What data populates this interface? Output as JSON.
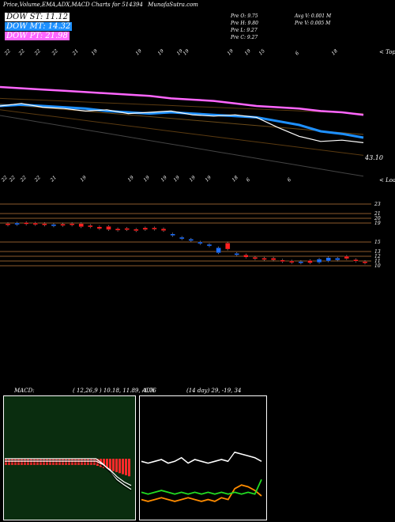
{
  "header": {
    "title": "Price,Volume,EMA,ADX,MACD Charts for 514394",
    "site": "MunafaSutra.com",
    "legend": [
      {
        "label": "DOW ST: 11.12",
        "color": "#ffffff"
      },
      {
        "label": "DOW MT: 14.32",
        "color": "#1e90ff"
      },
      {
        "label": "DOW PT: 21.98",
        "color": "#ff66ff"
      }
    ],
    "ohlc": [
      "Pre O: 9.75",
      "Pre H: 9.80",
      "Pre L: 9.27",
      "Pre C: 9.27"
    ],
    "vol": [
      "Avg V: 0.001 M",
      "Pre V: 0.005 M"
    ]
  },
  "ema_panel": {
    "top_dates": [
      "22",
      "22",
      "22",
      "22",
      "21",
      "19",
      "19",
      "19",
      "19",
      "19",
      "19",
      "19",
      "15",
      "6",
      "18"
    ],
    "bottom_dates": [
      "22",
      "22",
      "22",
      "22",
      "21",
      "19",
      "19",
      "19",
      "19",
      "19",
      "19",
      "19",
      "18",
      "6",
      "6"
    ],
    "last_label": "43.10",
    "top_note": "< Topo",
    "bottom_note": "< Loass"
  },
  "price_panel": {
    "levels": [
      23,
      21,
      20,
      19,
      15,
      13,
      12,
      11,
      10
    ]
  },
  "macd": {
    "label": "MACD:",
    "params": "( 12,26,9 ) 10.18, 11.89, -1.76"
  },
  "adx": {
    "label": "ADX",
    "params": "(14 day) 29, -19, 34"
  },
  "chart_data": [
    {
      "type": "line",
      "name": "ema",
      "series": [
        {
          "color": "#ff66ff",
          "values": [
            47.5,
            47.4,
            47.3,
            47.2,
            47.1,
            47.0,
            46.9,
            46.8,
            46.6,
            46.5,
            46.4,
            46.2,
            46.0,
            45.9,
            45.8,
            45.6,
            45.5,
            45.3
          ]
        },
        {
          "color": "#1e90ff",
          "values": [
            46.0,
            46.1,
            46.0,
            45.9,
            45.8,
            45.6,
            45.5,
            45.4,
            45.5,
            45.4,
            45.3,
            45.2,
            45.1,
            44.8,
            44.5,
            44.0,
            43.8,
            43.5
          ]
        },
        {
          "color": "#ffffff",
          "values": [
            46.0,
            46.2,
            45.9,
            45.8,
            45.6,
            45.7,
            45.4,
            45.5,
            45.6,
            45.3,
            45.2,
            45.3,
            45.1,
            44.3,
            43.6,
            43.2,
            43.3,
            43.1
          ]
        }
      ]
    },
    {
      "type": "candlestick",
      "name": "price",
      "ylim": [
        9,
        24
      ],
      "candles": [
        [
          18.9,
          18.8,
          "r"
        ],
        [
          18.9,
          19.0,
          "b"
        ],
        [
          18.8,
          19.1,
          "r"
        ],
        [
          18.7,
          19.0,
          "r"
        ],
        [
          18.8,
          18.9,
          "r"
        ],
        [
          18.5,
          18.7,
          "b"
        ],
        [
          18.6,
          18.8,
          "r"
        ],
        [
          18.9,
          18.7,
          "r"
        ],
        [
          18.2,
          18.9,
          "r"
        ],
        [
          18.3,
          18.5,
          "r"
        ],
        [
          17.8,
          18.2,
          "r"
        ],
        [
          17.6,
          18.3,
          "r"
        ],
        [
          17.5,
          17.8,
          "r"
        ],
        [
          17.6,
          17.9,
          "r"
        ],
        [
          17.4,
          17.7,
          "r"
        ],
        [
          17.6,
          18.0,
          "r"
        ],
        [
          17.7,
          18.0,
          "r"
        ],
        [
          17.4,
          17.8,
          "r"
        ],
        [
          16.5,
          16.7,
          "b"
        ],
        [
          15.8,
          16.0,
          "b"
        ],
        [
          15.4,
          15.6,
          "b"
        ],
        [
          14.8,
          15.0,
          "b"
        ],
        [
          14.3,
          14.5,
          "b"
        ],
        [
          12.7,
          13.8,
          "b"
        ],
        [
          13.5,
          14.8,
          "r"
        ],
        [
          12.4,
          12.6,
          "b"
        ],
        [
          11.8,
          12.3,
          "r"
        ],
        [
          11.6,
          11.8,
          "r"
        ],
        [
          11.4,
          11.6,
          "r"
        ],
        [
          11.2,
          11.6,
          "r"
        ],
        [
          10.9,
          11.2,
          "r"
        ],
        [
          10.8,
          11.0,
          "r"
        ],
        [
          10.7,
          10.9,
          "b"
        ],
        [
          10.6,
          11.1,
          "r"
        ],
        [
          10.7,
          11.4,
          "b"
        ],
        [
          11.0,
          11.7,
          "b"
        ],
        [
          11.2,
          11.6,
          "b"
        ],
        [
          11.5,
          12.0,
          "r"
        ],
        [
          11.0,
          11.3,
          "r"
        ],
        [
          10.6,
          10.9,
          "r"
        ]
      ]
    },
    {
      "type": "line",
      "name": "macd",
      "series": [
        {
          "name": "MACD",
          "values": [
            0,
            0,
            0,
            0,
            0,
            0,
            0,
            0,
            0,
            0,
            0,
            0,
            0,
            0,
            -0.3,
            -0.7,
            -1.2,
            -1.5,
            -1.76
          ]
        },
        {
          "name": "Signal",
          "values": [
            0,
            0,
            0,
            0,
            0,
            0,
            0,
            0,
            0,
            0,
            0,
            0,
            0,
            0,
            -0.2,
            -0.5,
            -0.9,
            -1.2,
            -1.4
          ]
        }
      ]
    },
    {
      "type": "line",
      "name": "adx",
      "series": [
        {
          "name": "ADX",
          "values": [
            29,
            28,
            29,
            30,
            28,
            29,
            31,
            28,
            30,
            29,
            28,
            29,
            30,
            29,
            34,
            33,
            32,
            31,
            29
          ]
        },
        {
          "name": "+DI",
          "values": [
            8,
            7,
            8,
            9,
            8,
            7,
            8,
            9,
            8,
            7,
            8,
            7,
            9,
            8,
            14,
            16,
            15,
            13,
            10
          ]
        },
        {
          "name": "-DI",
          "values": [
            12,
            11,
            12,
            13,
            12,
            11,
            12,
            11,
            12,
            11,
            12,
            11,
            12,
            11,
            12,
            11,
            12,
            11,
            19
          ]
        }
      ]
    }
  ]
}
